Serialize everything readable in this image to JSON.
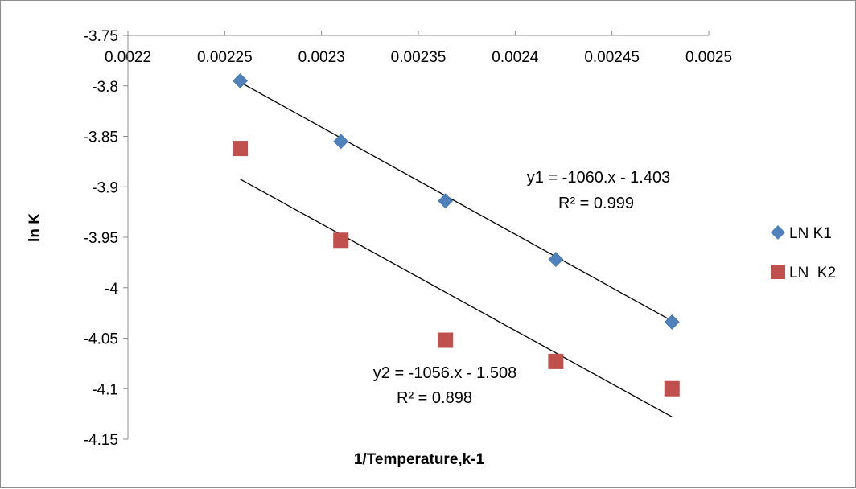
{
  "chart_data": {
    "type": "scatter",
    "title": "",
    "xlabel": "1/Temperature,k-1",
    "ylabel": "ln K",
    "xlim": [
      0.0022,
      0.0025
    ],
    "ylim": [
      -4.15,
      -3.75
    ],
    "x_ticks": [
      "0.0022",
      "0.00225",
      "0.0023",
      "0.00235",
      "0.0024",
      "0.00245",
      "0.0025"
    ],
    "y_ticks": [
      "-3.75",
      "-3.8",
      "-3.85",
      "-3.9",
      "-3.95",
      "-4",
      "-4.05",
      "-4.1",
      "-4.15"
    ],
    "grid": false,
    "legend_position": "right",
    "series": [
      {
        "name": "LN K1",
        "marker": "diamond",
        "color": "#4F81BD",
        "x": [
          0.002258,
          0.00231,
          0.002364,
          0.002421,
          0.002481
        ],
        "y": [
          -3.795,
          -3.855,
          -3.914,
          -3.972,
          -4.034
        ],
        "trendline": {
          "slope": -1060,
          "intercept": -1.403,
          "x_range": [
            0.002258,
            0.002481
          ]
        },
        "equation": "y1 = -1060.x - 1.403",
        "r2": "R² = 0.999"
      },
      {
        "name": "LN  K2",
        "marker": "square",
        "color": "#C0504D",
        "x": [
          0.002258,
          0.00231,
          0.002364,
          0.002421,
          0.002481
        ],
        "y": [
          -3.862,
          -3.953,
          -4.052,
          -4.073,
          -4.1
        ],
        "trendline": {
          "slope": -1056,
          "intercept": -1.508,
          "x_range": [
            0.002258,
            0.002481
          ]
        },
        "equation": "y2 = -1056.x - 1.508",
        "r2": "R² = 0.898"
      }
    ]
  }
}
